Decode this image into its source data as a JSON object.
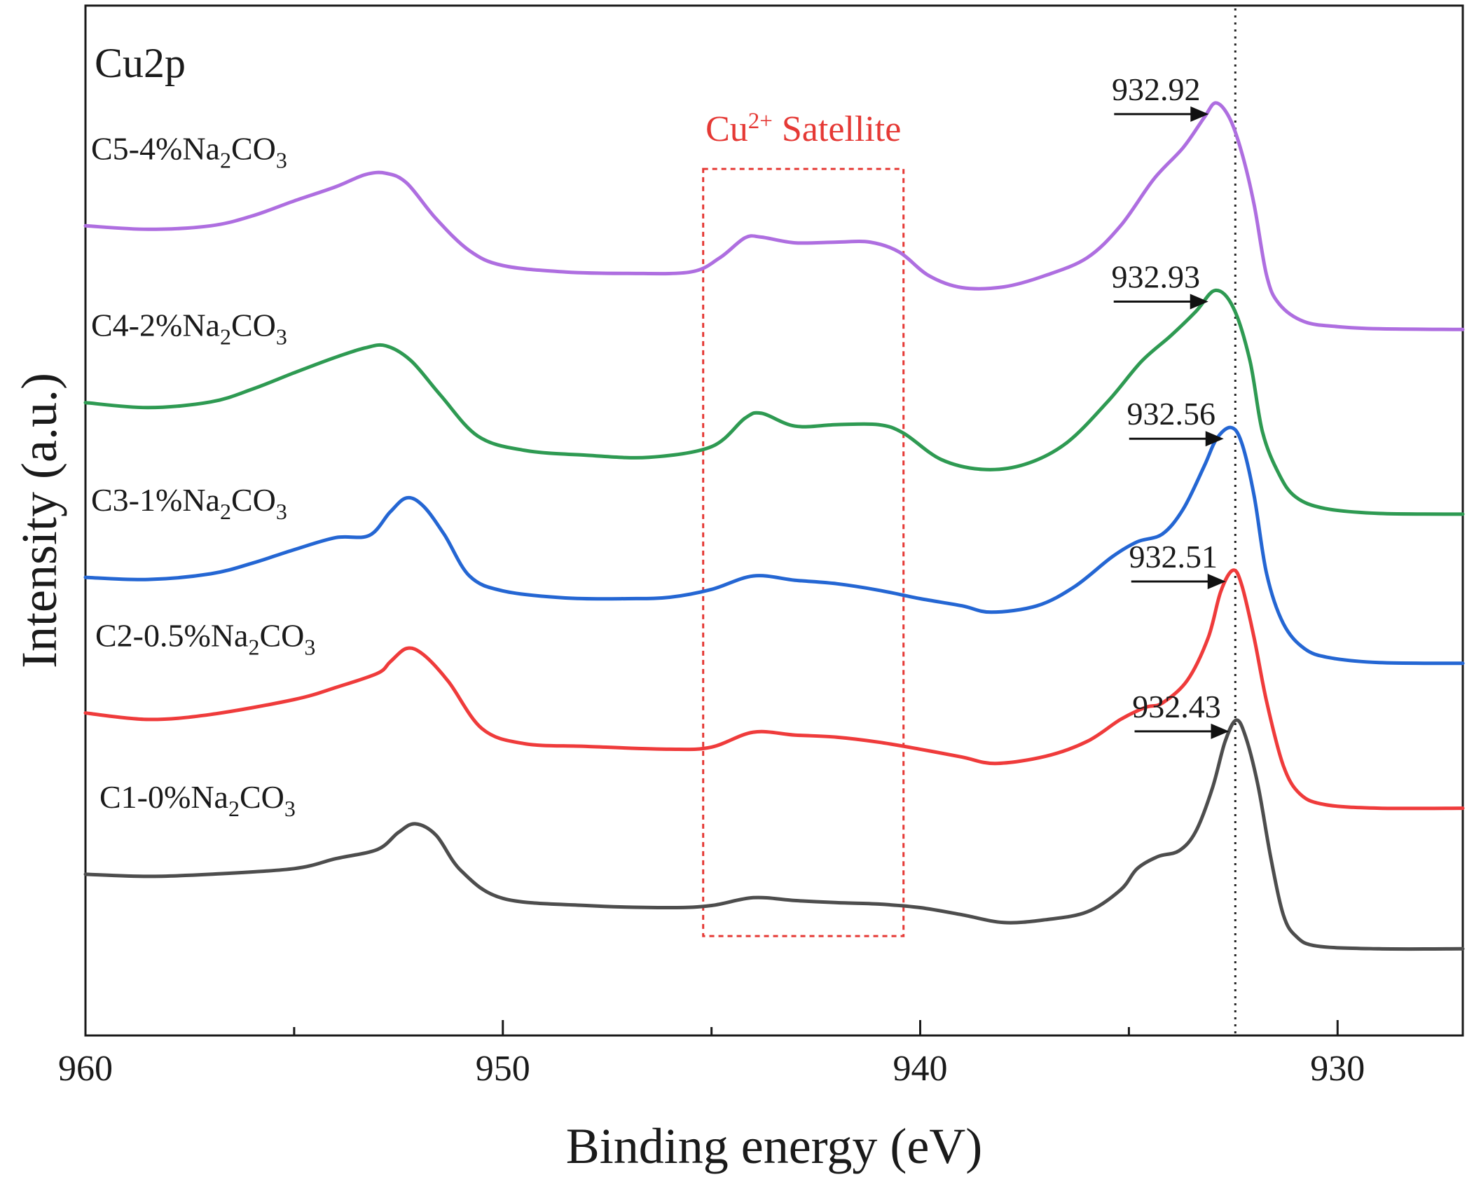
{
  "chart_data": {
    "type": "line",
    "title": "Cu2p",
    "xlabel": "Binding energy (eV)",
    "ylabel": "Intensity (a.u.)",
    "xlim": [
      960,
      927
    ],
    "x_reversed": true,
    "ylim": [
      -0.05,
      1.4
    ],
    "y_ticks_shown": false,
    "x_ticks": [
      960,
      950,
      940,
      930
    ],
    "x_tick_labels": [
      "960",
      "950",
      "940",
      "930"
    ],
    "x_minor_ticks": [
      955,
      945,
      935
    ],
    "reference_line": {
      "x": 932.45,
      "style": "dotted",
      "color": "#222222"
    },
    "satellite_box": {
      "x_range": [
        945.2,
        940.4
      ],
      "y_range": [
        0.09,
        1.17
      ],
      "label_base": "Cu",
      "label_sup": "2+",
      "label_rest": " Satellite",
      "color": "#e53935"
    },
    "series": [
      {
        "name": "C1-0%Na2CO3",
        "label_base": "C1-0%Na",
        "label_sub1": "2",
        "label_mid": "CO",
        "label_sub2": "3",
        "color": "#4d4d4d",
        "peak_label": "932.43",
        "peak_x": 932.43,
        "points": [
          [
            960,
            0.177
          ],
          [
            958.5,
            0.174
          ],
          [
            957,
            0.177
          ],
          [
            955,
            0.185
          ],
          [
            954,
            0.199
          ],
          [
            953,
            0.212
          ],
          [
            952.5,
            0.236
          ],
          [
            952.1,
            0.248
          ],
          [
            951.6,
            0.232
          ],
          [
            951,
            0.182
          ],
          [
            950,
            0.143
          ],
          [
            948,
            0.133
          ],
          [
            946,
            0.13
          ],
          [
            945,
            0.133
          ],
          [
            944,
            0.144
          ],
          [
            943,
            0.14
          ],
          [
            942,
            0.137
          ],
          [
            941,
            0.135
          ],
          [
            940,
            0.13
          ],
          [
            939,
            0.12
          ],
          [
            938,
            0.109
          ],
          [
            937,
            0.113
          ],
          [
            936,
            0.124
          ],
          [
            935.2,
            0.155
          ],
          [
            934.8,
            0.185
          ],
          [
            934.3,
            0.202
          ],
          [
            933.8,
            0.21
          ],
          [
            933.4,
            0.237
          ],
          [
            933,
            0.298
          ],
          [
            932.7,
            0.363
          ],
          [
            932.43,
            0.394
          ],
          [
            932.2,
            0.37
          ],
          [
            931.9,
            0.3
          ],
          [
            931.6,
            0.2
          ],
          [
            931.3,
            0.12
          ],
          [
            931,
            0.09
          ],
          [
            930.5,
            0.076
          ],
          [
            929,
            0.072
          ],
          [
            927,
            0.072
          ]
        ]
      },
      {
        "name": "C2-0.5%Na2CO3",
        "label_base": "C2-0.5%Na",
        "label_sub1": "2",
        "label_mid": "CO",
        "label_sub2": "3",
        "color": "#ef3b3b",
        "peak_label": "932.51",
        "peak_x": 932.51,
        "points": [
          [
            960,
            0.404
          ],
          [
            958.5,
            0.395
          ],
          [
            957,
            0.402
          ],
          [
            955,
            0.423
          ],
          [
            954,
            0.44
          ],
          [
            953,
            0.46
          ],
          [
            952.7,
            0.476
          ],
          [
            952.3,
            0.495
          ],
          [
            951.9,
            0.486
          ],
          [
            951.3,
            0.448
          ],
          [
            950.5,
            0.382
          ],
          [
            949.5,
            0.361
          ],
          [
            948,
            0.357
          ],
          [
            946,
            0.353
          ],
          [
            945,
            0.356
          ],
          [
            944,
            0.377
          ],
          [
            943,
            0.373
          ],
          [
            942,
            0.37
          ],
          [
            941,
            0.363
          ],
          [
            940,
            0.353
          ],
          [
            939,
            0.342
          ],
          [
            938.2,
            0.333
          ],
          [
            937,
            0.343
          ],
          [
            936,
            0.364
          ],
          [
            935.2,
            0.395
          ],
          [
            934.6,
            0.412
          ],
          [
            934.2,
            0.418
          ],
          [
            933.6,
            0.45
          ],
          [
            933.1,
            0.51
          ],
          [
            932.8,
            0.575
          ],
          [
            932.51,
            0.605
          ],
          [
            932.3,
            0.585
          ],
          [
            932,
            0.51
          ],
          [
            931.7,
            0.42
          ],
          [
            931.3,
            0.33
          ],
          [
            930.9,
            0.29
          ],
          [
            930.3,
            0.275
          ],
          [
            929,
            0.27
          ],
          [
            927,
            0.27
          ]
        ]
      },
      {
        "name": "C3-1%Na2CO3",
        "label_base": "C3-1%Na",
        "label_sub1": "2",
        "label_mid": "CO",
        "label_sub2": "3",
        "color": "#2466d3",
        "peak_label": "932.56",
        "peak_x": 932.56,
        "points": [
          [
            960,
            0.595
          ],
          [
            958.5,
            0.592
          ],
          [
            957,
            0.6
          ],
          [
            956,
            0.615
          ],
          [
            955,
            0.634
          ],
          [
            954,
            0.651
          ],
          [
            953.2,
            0.654
          ],
          [
            952.7,
            0.687
          ],
          [
            952.3,
            0.707
          ],
          [
            951.9,
            0.695
          ],
          [
            951.4,
            0.655
          ],
          [
            950.8,
            0.597
          ],
          [
            950,
            0.576
          ],
          [
            948.5,
            0.566
          ],
          [
            947,
            0.565
          ],
          [
            946,
            0.567
          ],
          [
            945,
            0.578
          ],
          [
            944,
            0.597
          ],
          [
            943,
            0.591
          ],
          [
            942,
            0.586
          ],
          [
            941,
            0.577
          ],
          [
            940,
            0.565
          ],
          [
            939,
            0.555
          ],
          [
            938.3,
            0.546
          ],
          [
            937.2,
            0.555
          ],
          [
            936.3,
            0.582
          ],
          [
            935.4,
            0.624
          ],
          [
            934.8,
            0.645
          ],
          [
            934.2,
            0.656
          ],
          [
            933.7,
            0.691
          ],
          [
            933.2,
            0.751
          ],
          [
            932.9,
            0.79
          ],
          [
            932.56,
            0.806
          ],
          [
            932.3,
            0.785
          ],
          [
            932,
            0.71
          ],
          [
            931.7,
            0.6
          ],
          [
            931.3,
            0.53
          ],
          [
            930.8,
            0.495
          ],
          [
            930.2,
            0.482
          ],
          [
            929,
            0.475
          ],
          [
            927,
            0.474
          ]
        ]
      },
      {
        "name": "C4-2%Na2CO3",
        "label_base": "C4-2%Na",
        "label_sub1": "2",
        "label_mid": "CO",
        "label_sub2": "3",
        "color": "#2e9a52",
        "peak_label": "932.93",
        "peak_x": 932.93,
        "points": [
          [
            960,
            0.841
          ],
          [
            958.5,
            0.834
          ],
          [
            957,
            0.842
          ],
          [
            956,
            0.86
          ],
          [
            955,
            0.883
          ],
          [
            954,
            0.905
          ],
          [
            953.3,
            0.918
          ],
          [
            952.8,
            0.921
          ],
          [
            952.2,
            0.9
          ],
          [
            951.5,
            0.852
          ],
          [
            950.6,
            0.794
          ],
          [
            949.5,
            0.774
          ],
          [
            948,
            0.767
          ],
          [
            946.5,
            0.764
          ],
          [
            945,
            0.779
          ],
          [
            944.2,
            0.819
          ],
          [
            943.8,
            0.826
          ],
          [
            943,
            0.808
          ],
          [
            942,
            0.81
          ],
          [
            941,
            0.81
          ],
          [
            940.4,
            0.798
          ],
          [
            939.5,
            0.761
          ],
          [
            938.5,
            0.747
          ],
          [
            937.5,
            0.754
          ],
          [
            936.5,
            0.784
          ],
          [
            935.5,
            0.843
          ],
          [
            934.7,
            0.899
          ],
          [
            934,
            0.935
          ],
          [
            933.4,
            0.969
          ],
          [
            932.93,
            0.999
          ],
          [
            932.5,
            0.975
          ],
          [
            932.1,
            0.9
          ],
          [
            931.8,
            0.8
          ],
          [
            931.4,
            0.74
          ],
          [
            931,
            0.708
          ],
          [
            930.3,
            0.692
          ],
          [
            929,
            0.685
          ],
          [
            927,
            0.684
          ]
        ]
      },
      {
        "name": "C5-4%Na2CO3",
        "label_base": "C5-4%Na",
        "label_sub1": "2",
        "label_mid": "CO",
        "label_sub2": "3",
        "color": "#ae6ee0",
        "peak_label": "932.92",
        "peak_x": 932.92,
        "points": [
          [
            960,
            1.09
          ],
          [
            958.5,
            1.085
          ],
          [
            957,
            1.09
          ],
          [
            956,
            1.104
          ],
          [
            955,
            1.125
          ],
          [
            954,
            1.145
          ],
          [
            953.3,
            1.162
          ],
          [
            952.8,
            1.164
          ],
          [
            952.3,
            1.15
          ],
          [
            951.6,
            1.1
          ],
          [
            950.8,
            1.055
          ],
          [
            950,
            1.034
          ],
          [
            948.5,
            1.025
          ],
          [
            947,
            1.023
          ],
          [
            945.5,
            1.025
          ],
          [
            944.8,
            1.045
          ],
          [
            944.2,
            1.073
          ],
          [
            943.8,
            1.074
          ],
          [
            943,
            1.066
          ],
          [
            942,
            1.067
          ],
          [
            941.2,
            1.067
          ],
          [
            940.5,
            1.053
          ],
          [
            939.8,
            1.02
          ],
          [
            939,
            1.003
          ],
          [
            938,
            1.004
          ],
          [
            937,
            1.02
          ],
          [
            936,
            1.045
          ],
          [
            935.2,
            1.09
          ],
          [
            934.4,
            1.156
          ],
          [
            933.7,
            1.2
          ],
          [
            933.2,
            1.242
          ],
          [
            932.92,
            1.263
          ],
          [
            932.6,
            1.243
          ],
          [
            932.3,
            1.194
          ],
          [
            932,
            1.12
          ],
          [
            931.7,
            1.02
          ],
          [
            931.4,
            0.98
          ],
          [
            930.8,
            0.955
          ],
          [
            930,
            0.948
          ],
          [
            929,
            0.945
          ],
          [
            927,
            0.944
          ]
        ]
      }
    ]
  }
}
